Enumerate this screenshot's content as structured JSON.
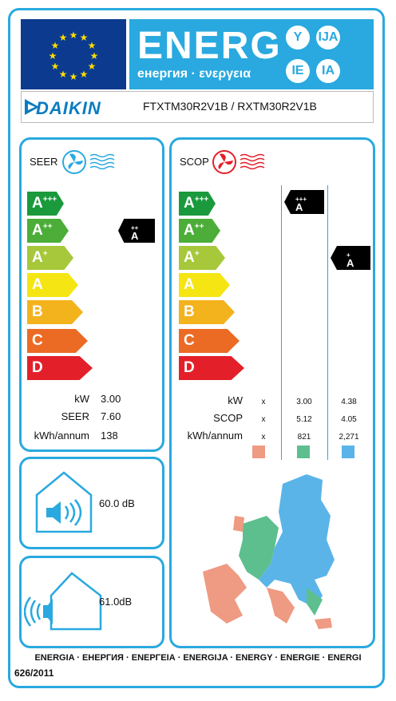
{
  "header": {
    "energ": "ENERG",
    "subtitle": "енергия · ενεργεια",
    "suffixes": [
      "Y",
      "IJA",
      "IE",
      "IA"
    ]
  },
  "supplier": {
    "brand": "DAIKIN",
    "model": "FTXTM30R2V1B / RXTM30R2V1B"
  },
  "seer_panel": {
    "title": "SEER",
    "classes": [
      "A",
      "A",
      "A",
      "A",
      "B",
      "C",
      "D"
    ],
    "class_sups": [
      "+++",
      "++",
      "+",
      "",
      "",
      "",
      ""
    ],
    "indicator": {
      "letter": "A",
      "sup": "++"
    },
    "rows": [
      {
        "label": "kW",
        "value": "3.00"
      },
      {
        "label": "SEER",
        "value": "7.60"
      },
      {
        "label": "kWh/annum",
        "value": "138"
      }
    ]
  },
  "scop_panel": {
    "title": "SCOP",
    "classes": [
      "A",
      "A",
      "A",
      "A",
      "B",
      "C",
      "D"
    ],
    "class_sups": [
      "+++",
      "++",
      "+",
      "",
      "",
      "",
      ""
    ],
    "indicator_average": {
      "letter": "A",
      "sup": "+++"
    },
    "indicator_warmer": {
      "letter": "A",
      "sup": "+"
    },
    "rows": [
      {
        "label": "kW",
        "colder": "x",
        "average": "3.00",
        "warmer": "4.38"
      },
      {
        "label": "SCOP",
        "colder": "x",
        "average": "5.12",
        "warmer": "4.05"
      },
      {
        "label": "kWh/annum",
        "colder": "x",
        "average": "821",
        "warmer": "2,271"
      }
    ],
    "zone_colors": [
      "#ef9a82",
      "#5dbf8e",
      "#5ab4e8"
    ]
  },
  "noise": {
    "indoor": "60.0 dB",
    "outdoor": "61.0dB"
  },
  "footer": {
    "languages": "ENERGIA · ЕНЕРГИЯ · ΕΝΕΡΓΕΙΑ · ENERGIJA · ENERGY · ENERGIE · ENERGI",
    "regulation": "626/2011"
  },
  "colors": {
    "border": "#29a9df",
    "eu_blue": "#0b3a8f",
    "classes": [
      "#1a9a3c",
      "#4cae38",
      "#a6c83a",
      "#f5e513",
      "#f3b31d",
      "#ec6b24",
      "#e3202a"
    ]
  }
}
